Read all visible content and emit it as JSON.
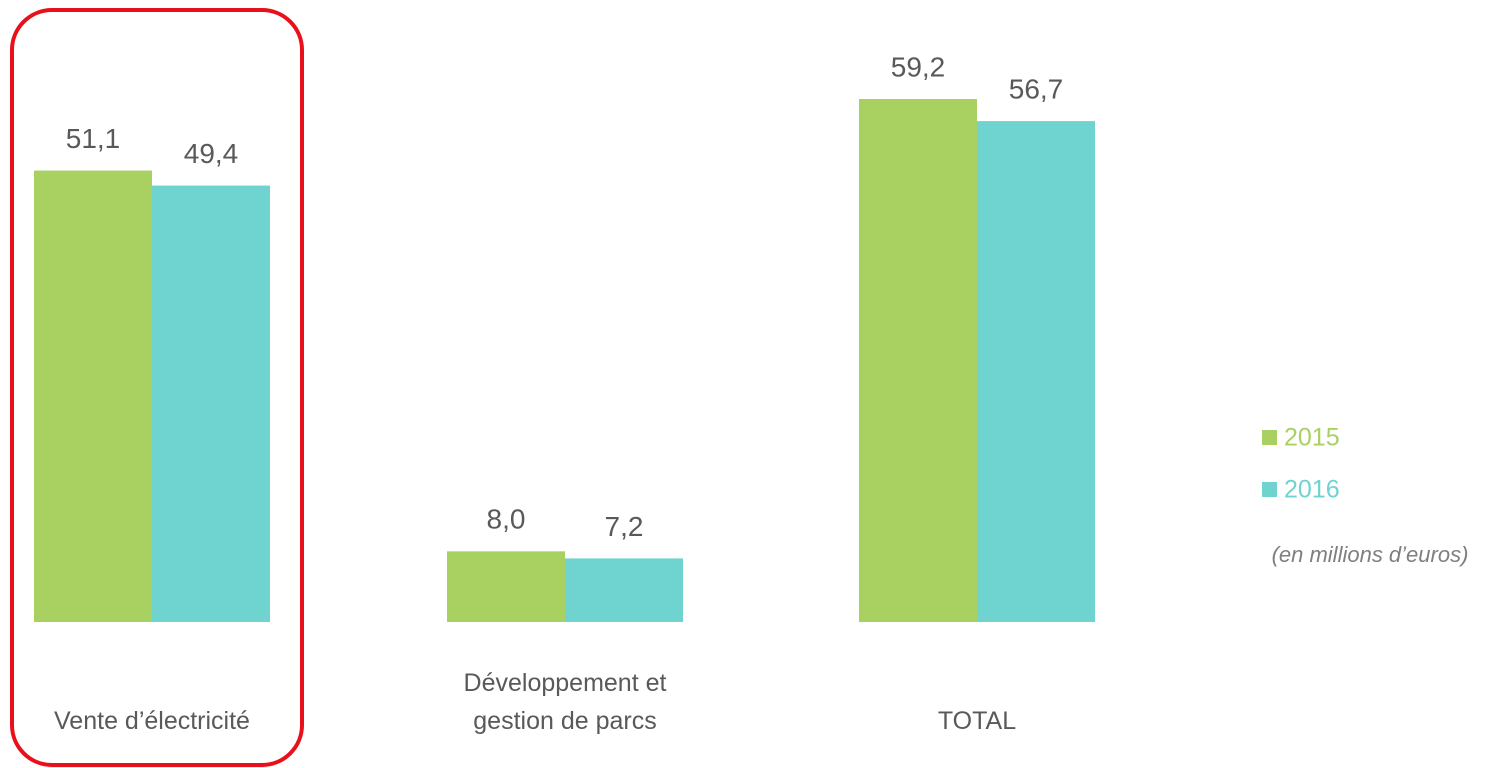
{
  "chart_data": {
    "type": "bar",
    "categories": [
      "Vente d’électricité",
      "Développement et gestion de parcs",
      "TOTAL"
    ],
    "series": [
      {
        "name": "2015",
        "color": "#a9d162",
        "values": [
          51.1,
          8.0,
          59.2
        ],
        "value_labels": [
          "51,1",
          "8,0",
          "59,2"
        ]
      },
      {
        "name": "2016",
        "color": "#6fd3d0",
        "values": [
          49.4,
          7.2,
          56.7
        ],
        "value_labels": [
          "49,4",
          "7,2",
          "56,7"
        ]
      }
    ],
    "note": "(en millions d’euros)",
    "legend": "right"
  }
}
